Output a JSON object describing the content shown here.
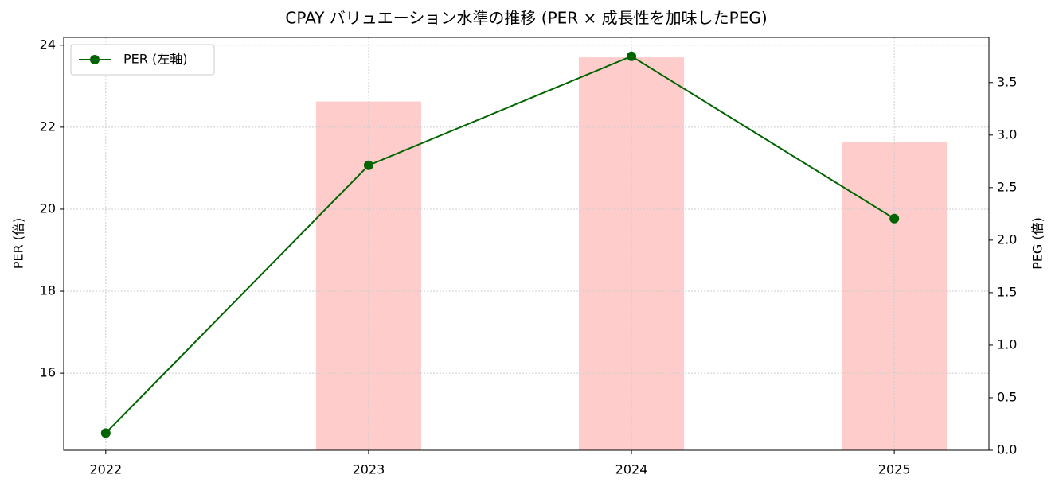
{
  "chart_data": {
    "type": "bar_line",
    "title": "CPAY バリュエーション水準の推移 (PER × 成長性を加味したPEG)",
    "y_label": "PER (倍)",
    "y2_label": "PEG (倍)",
    "x": [
      2022,
      2023,
      2024,
      2025
    ],
    "xlim": [
      2021.84,
      2025.36
    ],
    "xticks": [
      2022,
      2023,
      2024,
      2025
    ],
    "ylim": [
      14.12,
      24.19
    ],
    "yticks": [
      16,
      18,
      20,
      22,
      24
    ],
    "y2lim": [
      0,
      3.93
    ],
    "y2ticks": [
      {
        "value": 0,
        "label": "0.0"
      },
      {
        "value": 0.5,
        "label": "0.5"
      },
      {
        "value": 1,
        "label": "1.0"
      },
      {
        "value": 1.5,
        "label": "1.5"
      },
      {
        "value": 2,
        "label": "2.0"
      },
      {
        "value": 2.5,
        "label": "2.5"
      },
      {
        "value": 3,
        "label": "3.0"
      },
      {
        "value": 3.5,
        "label": "3.5"
      }
    ],
    "grid": true,
    "legend": "upper left",
    "bar_width": 0.4,
    "series": [
      {
        "name": "PER (左軸)",
        "kind": "line",
        "color": "#006400",
        "values": [
          14.54,
          21.07,
          23.73,
          19.77
        ]
      },
      {
        "kind": "bar",
        "axis": "y2",
        "color": "#ffcccc",
        "values": [
          null,
          3.32,
          3.74,
          2.93
        ]
      }
    ]
  }
}
